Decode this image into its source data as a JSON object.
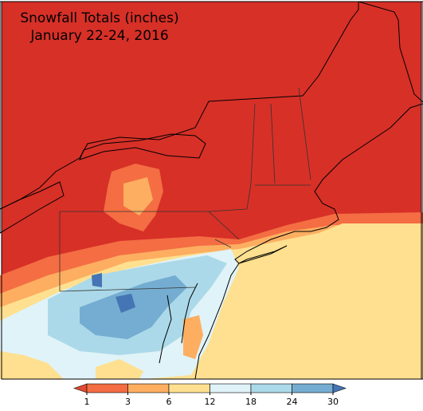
{
  "map": {
    "title": [
      "Snowfall Totals (inches)",
      "January 22-24, 2016"
    ]
  },
  "legend": {
    "ticks": [
      1,
      3,
      6,
      12,
      18,
      24,
      30
    ],
    "colors": [
      "#e34a33",
      "#f46d43",
      "#fdae61",
      "#fee090",
      "#e0f3f8",
      "#abd9e9",
      "#74add1",
      "#4575b4"
    ]
  }
}
